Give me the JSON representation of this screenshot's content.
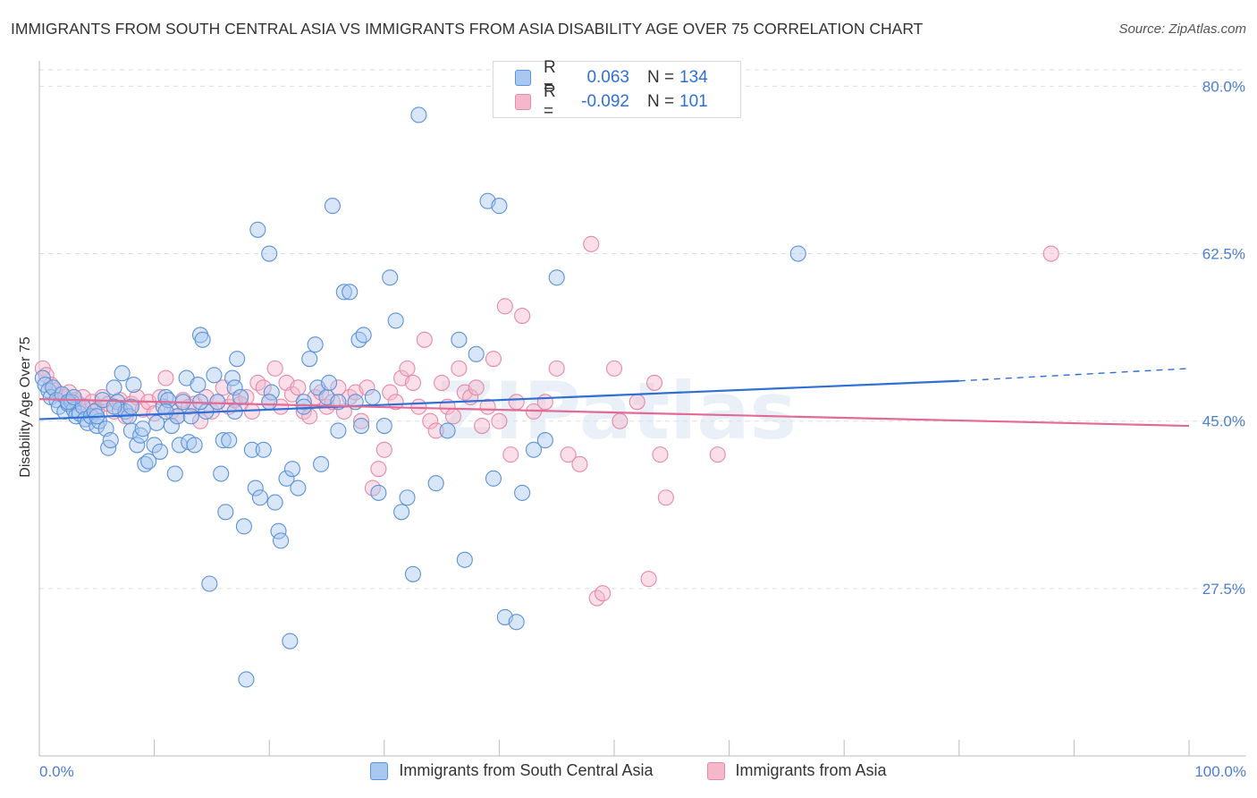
{
  "title": "IMMIGRANTS FROM SOUTH CENTRAL ASIA VS IMMIGRANTS FROM ASIA DISABILITY AGE OVER 75 CORRELATION CHART",
  "source": "Source: ZipAtlas.com",
  "watermark": "ZIPatlas",
  "colors": {
    "blue_fill": "#a8c8f0",
    "blue_stroke": "#5b93d8",
    "blue_line": "#2f6fd6",
    "pink_fill": "#f5b8cb",
    "pink_stroke": "#e58aa8",
    "pink_line": "#e36a95",
    "grid": "#dddddd",
    "tick_label": "#4a7fd1"
  },
  "legend_top": {
    "rows": [
      {
        "r_label": "R =",
        "r_value": "0.063",
        "n_label": "N =",
        "n_value": "134",
        "color": "#a8c8f0",
        "border": "#5b93d8"
      },
      {
        "r_label": "R =",
        "r_value": "-0.092",
        "n_label": "N =",
        "n_value": "101",
        "color": "#f5b8cb",
        "border": "#e58aa8"
      }
    ]
  },
  "chart_data": {
    "type": "scatter",
    "title": "IMMIGRANTS FROM SOUTH CENTRAL ASIA VS IMMIGRANTS FROM ASIA DISABILITY AGE OVER 75 CORRELATION CHART",
    "xlabel": "",
    "ylabel": "Disability Age Over 75",
    "xlim": [
      0,
      100
    ],
    "ylim": [
      10,
      82
    ],
    "x_tick_labels": [
      "0.0%",
      "100.0%"
    ],
    "y_ticks": [
      27.5,
      45.0,
      62.5,
      80.0
    ],
    "y_tick_labels": [
      "27.5%",
      "45.0%",
      "62.5%",
      "80.0%"
    ],
    "grid": true,
    "legend_position": "bottom",
    "series": [
      {
        "name": "Immigrants from South Central Asia",
        "color": "#a8c8f0",
        "trend": {
          "x": [
            0,
            80
          ],
          "y": [
            45.2,
            49.2
          ],
          "dashed_to": [
            100,
            50.5
          ]
        },
        "points": [
          [
            0.3,
            49.5
          ],
          [
            0.5,
            48.8
          ],
          [
            0.8,
            48.2
          ],
          [
            1.0,
            47.5
          ],
          [
            1.2,
            48.5
          ],
          [
            1.5,
            47.2
          ],
          [
            1.7,
            46.5
          ],
          [
            2.0,
            47.8
          ],
          [
            2.2,
            46.0
          ],
          [
            2.5,
            46.8
          ],
          [
            2.8,
            47.0
          ],
          [
            3.0,
            46.2
          ],
          [
            3.2,
            45.5
          ],
          [
            3.5,
            45.8
          ],
          [
            3.8,
            46.5
          ],
          [
            4.0,
            45.2
          ],
          [
            4.2,
            44.8
          ],
          [
            4.5,
            45.5
          ],
          [
            4.8,
            46.0
          ],
          [
            5.0,
            44.5
          ],
          [
            5.2,
            45.0
          ],
          [
            5.5,
            47.2
          ],
          [
            5.8,
            44.2
          ],
          [
            6.0,
            42.2
          ],
          [
            6.2,
            43.0
          ],
          [
            6.5,
            48.5
          ],
          [
            6.8,
            47.0
          ],
          [
            7.0,
            46.2
          ],
          [
            7.2,
            50.0
          ],
          [
            7.5,
            46.0
          ],
          [
            7.8,
            45.5
          ],
          [
            8.0,
            44.0
          ],
          [
            8.2,
            48.8
          ],
          [
            8.5,
            42.5
          ],
          [
            8.8,
            43.5
          ],
          [
            9.0,
            44.2
          ],
          [
            9.2,
            40.5
          ],
          [
            9.5,
            40.8
          ],
          [
            10.0,
            42.5
          ],
          [
            10.2,
            44.8
          ],
          [
            10.5,
            41.8
          ],
          [
            10.8,
            46.5
          ],
          [
            11.0,
            47.5
          ],
          [
            11.2,
            47.2
          ],
          [
            11.5,
            44.5
          ],
          [
            11.8,
            39.5
          ],
          [
            12.0,
            45.5
          ],
          [
            12.2,
            42.5
          ],
          [
            12.5,
            47.0
          ],
          [
            12.8,
            49.5
          ],
          [
            13.0,
            42.8
          ],
          [
            13.2,
            45.5
          ],
          [
            13.5,
            42.5
          ],
          [
            13.8,
            48.8
          ],
          [
            14.0,
            54.0
          ],
          [
            14.2,
            53.5
          ],
          [
            14.5,
            46.0
          ],
          [
            14.8,
            28.0
          ],
          [
            15.2,
            49.8
          ],
          [
            15.5,
            47.0
          ],
          [
            15.8,
            39.5
          ],
          [
            16.0,
            43.0
          ],
          [
            16.2,
            35.5
          ],
          [
            16.5,
            43.0
          ],
          [
            16.8,
            49.5
          ],
          [
            17.0,
            48.5
          ],
          [
            17.2,
            51.5
          ],
          [
            17.5,
            47.5
          ],
          [
            17.8,
            34.0
          ],
          [
            18.0,
            18.0
          ],
          [
            18.5,
            42.0
          ],
          [
            18.8,
            38.0
          ],
          [
            19.0,
            65.0
          ],
          [
            19.2,
            37.0
          ],
          [
            19.5,
            42.0
          ],
          [
            20.0,
            62.5
          ],
          [
            20.2,
            48.0
          ],
          [
            20.5,
            36.5
          ],
          [
            20.8,
            33.5
          ],
          [
            21.0,
            32.5
          ],
          [
            21.5,
            39.0
          ],
          [
            21.8,
            22.0
          ],
          [
            22.0,
            40.0
          ],
          [
            22.5,
            38.0
          ],
          [
            23.0,
            47.0
          ],
          [
            23.5,
            51.5
          ],
          [
            24.0,
            53.0
          ],
          [
            24.2,
            48.5
          ],
          [
            24.5,
            40.5
          ],
          [
            25.0,
            47.5
          ],
          [
            25.2,
            49.0
          ],
          [
            25.5,
            67.5
          ],
          [
            26.0,
            44.0
          ],
          [
            26.5,
            58.5
          ],
          [
            27.0,
            58.5
          ],
          [
            27.5,
            47.0
          ],
          [
            27.8,
            53.5
          ],
          [
            28.0,
            44.5
          ],
          [
            28.2,
            54.0
          ],
          [
            29.0,
            47.5
          ],
          [
            29.5,
            37.5
          ],
          [
            30.0,
            44.5
          ],
          [
            30.5,
            60.0
          ],
          [
            31.0,
            55.5
          ],
          [
            31.5,
            35.5
          ],
          [
            32.0,
            37.0
          ],
          [
            32.5,
            29.0
          ],
          [
            33.0,
            77.0
          ],
          [
            34.5,
            38.5
          ],
          [
            35.5,
            44.0
          ],
          [
            36.5,
            53.5
          ],
          [
            37.0,
            30.5
          ],
          [
            38.0,
            52.0
          ],
          [
            39.0,
            68.0
          ],
          [
            39.5,
            39.0
          ],
          [
            40.0,
            67.5
          ],
          [
            40.5,
            24.5
          ],
          [
            41.5,
            24.0
          ],
          [
            42.0,
            37.5
          ],
          [
            43.0,
            42.0
          ],
          [
            44.0,
            43.0
          ],
          [
            45.0,
            60.0
          ],
          [
            66.0,
            62.5
          ],
          [
            2.5,
            47.0
          ],
          [
            5.0,
            45.5
          ],
          [
            8.0,
            46.5
          ],
          [
            11.0,
            46.0
          ],
          [
            14.0,
            47.0
          ],
          [
            17.0,
            46.0
          ],
          [
            20.0,
            47.0
          ],
          [
            23.0,
            46.5
          ],
          [
            26.0,
            47.0
          ],
          [
            3.0,
            47.5
          ],
          [
            6.5,
            46.5
          ]
        ]
      },
      {
        "name": "Immigrants from Asia",
        "color": "#f5b8cb",
        "trend": {
          "x": [
            0,
            100
          ],
          "y": [
            47.3,
            44.5
          ]
        },
        "points": [
          [
            0.3,
            50.5
          ],
          [
            0.6,
            49.8
          ],
          [
            1.0,
            48.8
          ],
          [
            1.4,
            48.2
          ],
          [
            1.8,
            47.8
          ],
          [
            2.2,
            47.5
          ],
          [
            2.6,
            48.0
          ],
          [
            3.0,
            47.2
          ],
          [
            3.4,
            46.8
          ],
          [
            3.8,
            47.5
          ],
          [
            4.2,
            46.5
          ],
          [
            4.6,
            47.0
          ],
          [
            5.0,
            46.2
          ],
          [
            5.5,
            47.5
          ],
          [
            6.0,
            46.8
          ],
          [
            6.5,
            46.0
          ],
          [
            7.0,
            47.2
          ],
          [
            7.5,
            45.5
          ],
          [
            8.0,
            46.8
          ],
          [
            8.5,
            47.5
          ],
          [
            9.0,
            46.2
          ],
          [
            9.5,
            47.0
          ],
          [
            10.0,
            45.8
          ],
          [
            10.5,
            47.5
          ],
          [
            11.0,
            49.5
          ],
          [
            11.5,
            46.0
          ],
          [
            12.0,
            45.5
          ],
          [
            12.5,
            47.2
          ],
          [
            13.0,
            46.5
          ],
          [
            13.5,
            46.8
          ],
          [
            14.0,
            45.0
          ],
          [
            14.5,
            47.5
          ],
          [
            15.0,
            46.0
          ],
          [
            15.5,
            47.0
          ],
          [
            16.0,
            48.5
          ],
          [
            16.5,
            46.5
          ],
          [
            17.0,
            47.2
          ],
          [
            17.5,
            46.8
          ],
          [
            18.0,
            47.5
          ],
          [
            18.5,
            46.0
          ],
          [
            19.0,
            49.0
          ],
          [
            19.5,
            48.5
          ],
          [
            20.0,
            47.0
          ],
          [
            20.5,
            50.5
          ],
          [
            21.0,
            46.5
          ],
          [
            21.5,
            49.0
          ],
          [
            22.0,
            47.8
          ],
          [
            22.5,
            48.5
          ],
          [
            23.0,
            46.0
          ],
          [
            23.5,
            45.5
          ],
          [
            24.0,
            47.5
          ],
          [
            24.5,
            48.0
          ],
          [
            25.0,
            46.5
          ],
          [
            25.5,
            47.0
          ],
          [
            26.0,
            48.5
          ],
          [
            26.5,
            46.0
          ],
          [
            27.0,
            47.5
          ],
          [
            27.5,
            48.0
          ],
          [
            28.0,
            45.0
          ],
          [
            28.5,
            48.5
          ],
          [
            29.0,
            38.0
          ],
          [
            29.5,
            40.0
          ],
          [
            30.0,
            42.0
          ],
          [
            30.5,
            48.0
          ],
          [
            31.0,
            47.0
          ],
          [
            31.5,
            49.5
          ],
          [
            32.0,
            50.5
          ],
          [
            32.5,
            49.0
          ],
          [
            33.0,
            46.5
          ],
          [
            33.5,
            53.5
          ],
          [
            34.0,
            45.0
          ],
          [
            34.5,
            44.0
          ],
          [
            35.0,
            49.0
          ],
          [
            35.5,
            46.5
          ],
          [
            36.0,
            45.5
          ],
          [
            36.5,
            50.5
          ],
          [
            37.0,
            48.0
          ],
          [
            37.5,
            47.5
          ],
          [
            38.0,
            48.5
          ],
          [
            38.5,
            44.5
          ],
          [
            39.0,
            46.5
          ],
          [
            39.5,
            51.5
          ],
          [
            40.0,
            45.0
          ],
          [
            40.5,
            57.0
          ],
          [
            41.0,
            41.5
          ],
          [
            41.5,
            47.0
          ],
          [
            42.0,
            56.0
          ],
          [
            43.0,
            46.0
          ],
          [
            44.0,
            47.0
          ],
          [
            45.0,
            50.5
          ],
          [
            46.0,
            41.5
          ],
          [
            47.0,
            40.5
          ],
          [
            48.0,
            63.5
          ],
          [
            48.5,
            26.5
          ],
          [
            49.0,
            27.0
          ],
          [
            50.0,
            50.5
          ],
          [
            50.5,
            45.0
          ],
          [
            52.0,
            47.0
          ],
          [
            53.0,
            28.5
          ],
          [
            53.5,
            49.0
          ],
          [
            54.0,
            41.5
          ],
          [
            54.5,
            37.0
          ],
          [
            59.0,
            41.5
          ],
          [
            88.0,
            62.5
          ]
        ]
      }
    ]
  }
}
